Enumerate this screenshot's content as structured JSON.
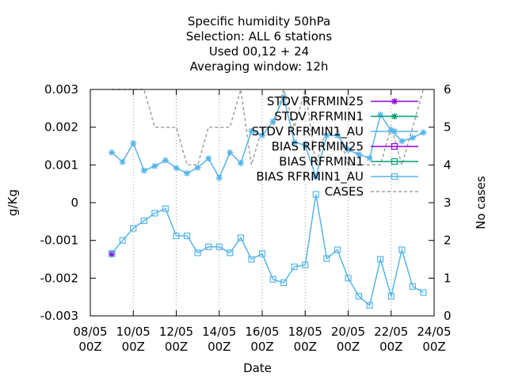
{
  "chart_data": {
    "type": "line",
    "title_lines": [
      "Specific humidity 50hPa",
      "Selection: ALL      6 stations",
      "Used  00,12  + 24",
      "Averaging window: 12h"
    ],
    "xlabel": "Date",
    "ylabel": "g/Kg",
    "y2label": "No cases",
    "x_ticks": [
      {
        "day": 8,
        "label": [
          "08/05",
          "00Z"
        ]
      },
      {
        "day": 10,
        "label": [
          "10/05",
          "00Z"
        ]
      },
      {
        "day": 12,
        "label": [
          "12/05",
          "00Z"
        ]
      },
      {
        "day": 14,
        "label": [
          "14/05",
          "00Z"
        ]
      },
      {
        "day": 16,
        "label": [
          "16/05",
          "00Z"
        ]
      },
      {
        "day": 18,
        "label": [
          "18/05",
          "00Z"
        ]
      },
      {
        "day": 20,
        "label": [
          "20/05",
          "00Z"
        ]
      },
      {
        "day": 22,
        "label": [
          "22/05",
          "00Z"
        ]
      },
      {
        "day": 24,
        "label": [
          "24/05",
          "00Z"
        ]
      }
    ],
    "xlim": [
      8,
      24
    ],
    "ylim": [
      -0.003,
      0.003
    ],
    "y_ticks": [
      {
        "v": 0.003,
        "label": "0.003"
      },
      {
        "v": 0.002,
        "label": "0.002"
      },
      {
        "v": 0.001,
        "label": "0.001"
      },
      {
        "v": 0,
        "label": "0"
      },
      {
        "v": -0.001,
        "label": "-0.001"
      },
      {
        "v": -0.002,
        "label": "-0.002"
      },
      {
        "v": -0.003,
        "label": "-0.003"
      }
    ],
    "y2lim": [
      0,
      6
    ],
    "y2_ticks": [
      {
        "v": 6,
        "label": "6"
      },
      {
        "v": 5,
        "label": "5"
      },
      {
        "v": 4,
        "label": "4"
      },
      {
        "v": 3,
        "label": "3"
      },
      {
        "v": 2,
        "label": "2"
      },
      {
        "v": 1,
        "label": "1"
      },
      {
        "v": 0,
        "label": "0"
      }
    ],
    "legend_position": "top-right",
    "series": [
      {
        "name": "STDV RFRMIN25",
        "color": "#9400d3",
        "marker": "star",
        "axis": "y",
        "x": [
          9.0
        ],
        "y": [
          -0.00137
        ]
      },
      {
        "name": "STDV RFRMIN1",
        "color": "#009e73",
        "marker": "star",
        "axis": "y",
        "x": [],
        "y": []
      },
      {
        "name": "STDV RFRMIN1_AU",
        "color": "#56b4e9",
        "marker": "star",
        "axis": "y",
        "x": [
          9.0,
          9.5,
          10.0,
          10.5,
          11.0,
          11.5,
          12.0,
          12.5,
          13.0,
          13.5,
          14.0,
          14.5,
          15.0,
          15.5,
          16.0,
          16.5,
          17.0,
          17.5,
          18.0,
          18.5,
          19.0,
          19.5,
          20.0,
          20.5,
          21.0,
          21.5,
          22.0,
          22.5,
          23.0,
          23.5
        ],
        "y": [
          0.00133,
          0.00108,
          0.00158,
          0.00085,
          0.00097,
          0.00112,
          0.00092,
          0.00078,
          0.00093,
          0.00117,
          0.00066,
          0.00133,
          0.00105,
          0.0019,
          0.00178,
          0.00215,
          0.0028,
          0.0016,
          0.00152,
          0.00068,
          0.00178,
          0.00178,
          0.0014,
          0.00128,
          0.00118,
          0.00233,
          0.00192,
          0.00163,
          0.00172,
          0.00186
        ]
      },
      {
        "name": "BIAS RFRMIN25",
        "color": "#9400d3",
        "marker": "square",
        "axis": "y",
        "x": [
          9.0
        ],
        "y": [
          -0.00135
        ]
      },
      {
        "name": "BIAS RFRMIN1",
        "color": "#009e73",
        "marker": "square",
        "axis": "y",
        "x": [],
        "y": []
      },
      {
        "name": "BIAS RFRMIN1_AU",
        "color": "#56b4e9",
        "marker": "square",
        "axis": "y",
        "x": [
          9.0,
          9.5,
          10.0,
          10.5,
          11.0,
          11.5,
          12.0,
          12.5,
          13.0,
          13.5,
          14.0,
          14.5,
          15.0,
          15.5,
          16.0,
          16.5,
          17.0,
          17.5,
          18.0,
          18.5,
          19.0,
          19.5,
          20.0,
          20.5,
          21.0,
          21.5,
          22.0,
          22.5,
          23.0,
          23.5
        ],
        "y": [
          -0.00135,
          -0.001,
          -0.00068,
          -0.00048,
          -0.00028,
          -0.00016,
          -0.00088,
          -0.00088,
          -0.00133,
          -0.00117,
          -0.00117,
          -0.00133,
          -0.00093,
          -0.0015,
          -0.00135,
          -0.00203,
          -0.00212,
          -0.0017,
          -0.00165,
          0.00022,
          -0.00148,
          -0.00125,
          -0.002,
          -0.00248,
          -0.00272,
          -0.0015,
          -0.00248,
          -0.00125,
          -0.00222,
          -0.00238
        ]
      },
      {
        "name": "CASES",
        "color": "#a0a0a0",
        "dash": true,
        "axis": "y2",
        "x": [
          9.0,
          9.5,
          10.0,
          10.5,
          11.0,
          11.5,
          12.0,
          12.5,
          13.0,
          13.5,
          14.0,
          14.5,
          15.0,
          15.5,
          16.0,
          16.5,
          17.0,
          17.5,
          18.0,
          18.5,
          19.0,
          19.5,
          20.0,
          20.5,
          21.0,
          21.5,
          22.0,
          22.5,
          23.0,
          23.5
        ],
        "y": [
          6,
          6,
          6,
          6,
          5,
          5,
          5,
          4,
          4,
          5,
          5,
          5,
          6,
          4,
          5,
          5,
          6,
          5,
          6,
          4,
          5,
          5,
          4,
          4,
          4,
          4,
          5,
          4,
          5,
          6
        ]
      }
    ]
  }
}
